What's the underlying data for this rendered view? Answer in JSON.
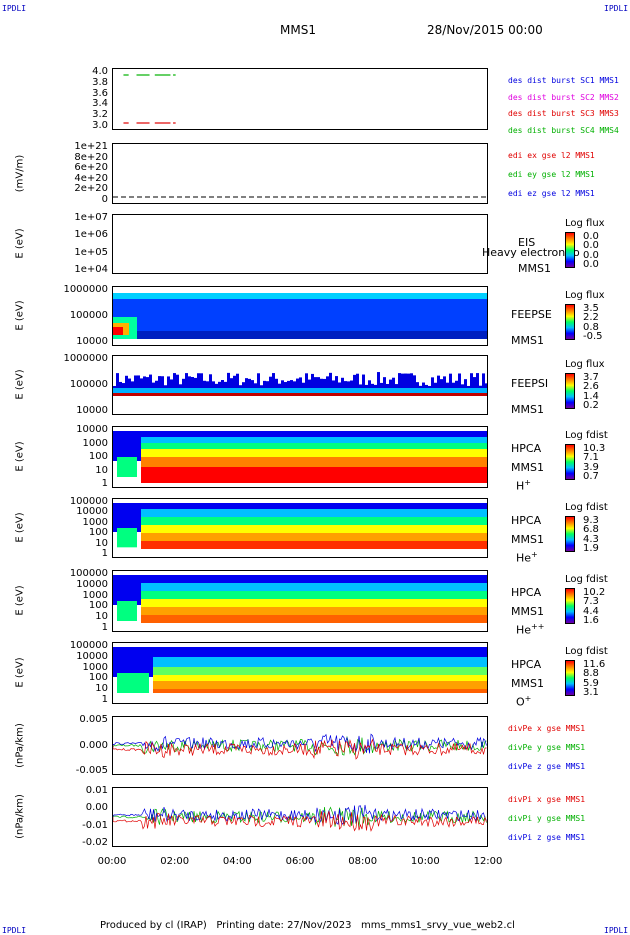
{
  "header": {
    "corner_left": "IPDLI",
    "corner_right": "IPDLI",
    "mission": "MMS1",
    "date": "28/Nov/2015 00:00"
  },
  "footer": {
    "text": "Produced by cl (IRAP)   Printing date: 27/Nov/2023   mms_mms1_srvy_vue_web2.cl",
    "corner_left": "IPDLI",
    "corner_right": "IPDLI"
  },
  "colors": {
    "red": "#e00000",
    "green": "#00b000",
    "blue": "#0000e0",
    "magenta": "#e000e0"
  },
  "xaxis": {
    "ticks": [
      "00:00",
      "02:00",
      "04:00",
      "06:00",
      "08:00",
      "10:00",
      "12:00"
    ]
  },
  "panels": [
    {
      "id": "des",
      "yticks": [
        "4.0",
        "3.8",
        "3.6",
        "3.4",
        "3.2",
        "3.0"
      ],
      "legend": [
        {
          "text": "des dist burst SC1 MMS1",
          "color": "#0000e0"
        },
        {
          "text": "des dist burst SC2 MMS2",
          "color": "#e000e0"
        },
        {
          "text": "des dist burst SC3 MMS3",
          "color": "#e00000"
        },
        {
          "text": "des dist burst SC4 MMS4",
          "color": "#00b000"
        }
      ]
    },
    {
      "id": "edi",
      "ylabel": "(mV/m)",
      "yticks": [
        "1e+21",
        "8e+20",
        "6e+20",
        "4e+20",
        "2e+20",
        "0"
      ],
      "legend": [
        {
          "text": "edi ex gse l2 MMS1",
          "color": "#e00000"
        },
        {
          "text": "edi ey gse l2 MMS1",
          "color": "#00b000"
        },
        {
          "text": "edi ez gse l2 MMS1",
          "color": "#0000e0"
        }
      ]
    },
    {
      "id": "eis",
      "ylabel": "E (eV)",
      "yticks": [
        "1e+07",
        "1e+06",
        "1e+05",
        "1e+04"
      ],
      "right": [
        "EIS",
        "MMS1"
      ],
      "overlay": "Heavy electron to",
      "cbtitle": "Log flux",
      "cbvals": [
        "0.0",
        "0.0",
        "0.0",
        "0.0"
      ]
    },
    {
      "id": "feepse",
      "ylabel": "E (eV)",
      "yticks": [
        "1000000",
        "100000",
        "10000"
      ],
      "right": [
        "FEEPSE",
        "MMS1"
      ],
      "cbtitle": "Log flux",
      "cbvals": [
        "3.5",
        "2.2",
        "0.8",
        "-0.5"
      ]
    },
    {
      "id": "feepsi",
      "ylabel": "E (eV)",
      "yticks": [
        "1000000",
        "100000",
        "10000"
      ],
      "right": [
        "FEEPSI",
        "MMS1"
      ],
      "cbtitle": "Log flux",
      "cbvals": [
        "3.7",
        "2.6",
        "1.4",
        "0.2"
      ]
    },
    {
      "id": "hpca_h",
      "ylabel": "E (eV)",
      "yticks": [
        "10000",
        "1000",
        "100",
        "10",
        "1"
      ],
      "right": [
        "HPCA",
        "MMS1"
      ],
      "species": "H",
      "sup": "+",
      "cbtitle": "Log fdist",
      "cbvals": [
        "10.3",
        "7.1",
        "3.9",
        "0.7"
      ]
    },
    {
      "id": "hpca_he",
      "ylabel": "E (eV)",
      "yticks": [
        "100000",
        "10000",
        "1000",
        "100",
        "10",
        "1"
      ],
      "right": [
        "HPCA",
        "MMS1"
      ],
      "species": "He",
      "sup": "+",
      "cbtitle": "Log fdist",
      "cbvals": [
        "9.3",
        "6.8",
        "4.3",
        "1.9"
      ]
    },
    {
      "id": "hpca_hepp",
      "ylabel": "E (eV)",
      "yticks": [
        "100000",
        "10000",
        "1000",
        "100",
        "10",
        "1"
      ],
      "right": [
        "HPCA",
        "MMS1"
      ],
      "species": "He",
      "sup": "++",
      "cbtitle": "Log fdist",
      "cbvals": [
        "10.2",
        "7.3",
        "4.4",
        "1.6"
      ]
    },
    {
      "id": "hpca_o",
      "ylabel": "E (eV)",
      "yticks": [
        "100000",
        "10000",
        "1000",
        "100",
        "10",
        "1"
      ],
      "right": [
        "HPCA",
        "MMS1"
      ],
      "species": "O",
      "sup": "+",
      "cbtitle": "Log fdist",
      "cbvals": [
        "11.6",
        "8.8",
        "5.9",
        "3.1"
      ]
    },
    {
      "id": "dpe",
      "ylabel": "(nPa/km)",
      "yticks": [
        "0.005",
        "0.000",
        "-0.005"
      ],
      "legend": [
        {
          "text": "divPe x gse MMS1",
          "color": "#e00000"
        },
        {
          "text": "divPe y gse MMS1",
          "color": "#00b000"
        },
        {
          "text": "divPe z gse MMS1",
          "color": "#0000e0"
        }
      ]
    },
    {
      "id": "dpi",
      "ylabel": "(nPa/km)",
      "yticks": [
        "0.01",
        "0.00",
        "-0.01",
        "-0.02"
      ],
      "legend": [
        {
          "text": "divPi x gse MMS1",
          "color": "#e00000"
        },
        {
          "text": "divPi y gse MMS1",
          "color": "#00b000"
        },
        {
          "text": "divPi z gse MMS1",
          "color": "#0000e0"
        }
      ]
    }
  ],
  "chart_data": {
    "type": "heatmap",
    "title": "MMS1",
    "time_range": [
      "00:00",
      "12:00"
    ],
    "des_burst": [
      {
        "series": "SC4 MMS4",
        "y": 4.0,
        "segments": [
          [
            "00:20",
            "00:30"
          ],
          [
            "00:45",
            "01:10"
          ],
          [
            "01:20",
            "01:50"
          ],
          [
            "01:55",
            "02:00"
          ]
        ]
      },
      {
        "series": "SC3 MMS3",
        "y": 3.0,
        "segments": [
          [
            "00:20",
            "00:30"
          ],
          [
            "00:45",
            "01:10"
          ],
          [
            "01:20",
            "01:50"
          ],
          [
            "01:55",
            "02:00"
          ]
        ]
      }
    ],
    "edi_value": 0
  }
}
